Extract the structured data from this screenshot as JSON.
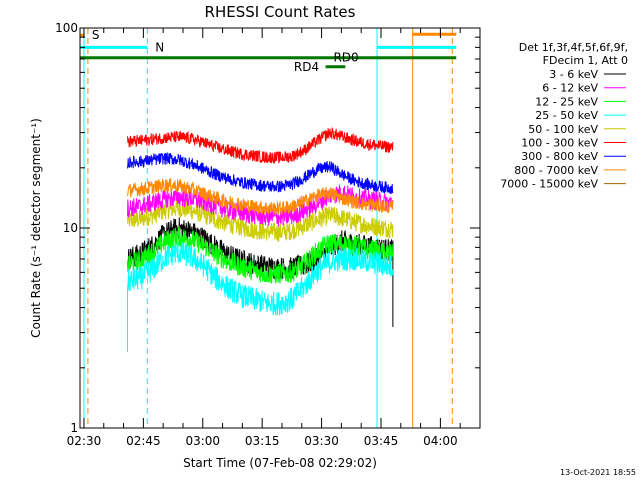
{
  "chart_data": {
    "type": "line",
    "title": "RHESSI Count Rates",
    "xlabel": "Start Time (07-Feb-08 02:29:02)",
    "ylabel": "Count Rate (s⁻¹ detector segment⁻¹)",
    "x_unit": "minutes",
    "xlim": [
      "02:29",
      "04:10"
    ],
    "ylim": [
      1,
      100
    ],
    "yscale": "log",
    "x_ticks": [
      "02:30",
      "02:45",
      "03:00",
      "03:15",
      "03:30",
      "03:45",
      "04:00"
    ],
    "y_ticks": [
      "1",
      "10",
      "100"
    ],
    "grid": false,
    "legend_position": "right",
    "legend_header": [
      "Det 1f,3f,4f,5f,6f,9f,",
      "FDecim 1, Att 0"
    ],
    "timestamp": "13-Oct-2021 18:55",
    "series": [
      {
        "name": "3 - 6 keV",
        "color": "#000000",
        "values": [
          7.0,
          7.4,
          8.2,
          9.4,
          10.0,
          9.6,
          8.9,
          8.0,
          7.3,
          6.9,
          6.6,
          6.4,
          6.3,
          6.3,
          6.5,
          7.0,
          7.9,
          8.6,
          8.3,
          8.1,
          7.9,
          7.7
        ]
      },
      {
        "name": "6 - 12 keV",
        "color": "#ff00ff",
        "values": [
          12.6,
          12.8,
          13.4,
          14.0,
          14.3,
          14.1,
          13.5,
          12.9,
          12.3,
          11.9,
          11.6,
          11.4,
          11.3,
          11.5,
          12.2,
          13.2,
          14.6,
          15.0,
          14.3,
          13.9,
          13.6,
          13.3
        ]
      },
      {
        "name": "12 - 25 keV",
        "color": "#00ff00",
        "values": [
          6.6,
          6.9,
          7.6,
          8.6,
          9.1,
          8.8,
          8.2,
          7.4,
          6.8,
          6.4,
          6.1,
          5.9,
          5.9,
          6.0,
          6.6,
          7.6,
          8.4,
          8.3,
          8.1,
          7.8,
          7.6,
          7.4
        ]
      },
      {
        "name": "25 - 50 keV",
        "color": "#00ffff",
        "values": [
          5.4,
          5.6,
          6.2,
          7.2,
          7.6,
          7.2,
          6.5,
          5.6,
          5.0,
          4.6,
          4.4,
          4.2,
          4.2,
          4.4,
          5.1,
          6.1,
          6.8,
          7.0,
          7.0,
          6.8,
          6.6,
          6.4
        ]
      },
      {
        "name": "50 - 100 keV",
        "color": "#cccc00",
        "values": [
          10.9,
          11.1,
          11.6,
          12.3,
          12.6,
          12.3,
          11.7,
          11.0,
          10.5,
          10.1,
          9.8,
          9.6,
          9.5,
          9.7,
          10.3,
          11.0,
          11.6,
          11.2,
          10.7,
          10.3,
          10.1,
          9.9
        ]
      },
      {
        "name": "100 - 300 keV",
        "color": "#ff0000",
        "values": [
          27.0,
          27.3,
          27.8,
          28.3,
          28.5,
          28.0,
          26.8,
          25.4,
          24.3,
          23.5,
          23.0,
          22.6,
          22.5,
          22.8,
          24.5,
          27.2,
          30.0,
          28.6,
          27.3,
          26.3,
          25.7,
          25.3
        ]
      },
      {
        "name": "300 - 800 keV",
        "color": "#0000ff",
        "values": [
          21.2,
          21.5,
          21.9,
          22.3,
          22.0,
          21.0,
          19.8,
          18.5,
          17.6,
          16.9,
          16.5,
          16.2,
          16.1,
          16.5,
          17.8,
          19.6,
          20.3,
          18.5,
          17.2,
          16.5,
          16.1,
          15.8
        ]
      },
      {
        "name": "800 - 7000 keV",
        "color": "#ff8800",
        "values": [
          15.4,
          15.6,
          16.0,
          16.4,
          16.3,
          15.7,
          14.9,
          14.1,
          13.5,
          13.1,
          12.8,
          12.6,
          12.5,
          12.8,
          13.6,
          14.5,
          14.9,
          14.1,
          13.5,
          13.1,
          12.9,
          12.7
        ]
      },
      {
        "name": "7000 - 15000 keV",
        "color": "#aa6600",
        "values": []
      }
    ],
    "vertical_markers": [
      {
        "time": "02:30",
        "color": "#00ffff",
        "style": "solid"
      },
      {
        "time": "02:31",
        "color": "#ff8800",
        "style": "dashed"
      },
      {
        "time": "02:46",
        "color": "#00ffff",
        "style": "dashed"
      },
      {
        "time": "03:44",
        "color": "#00ffff",
        "style": "solid"
      },
      {
        "time": "03:53",
        "color": "#ff8800",
        "style": "solid"
      },
      {
        "time": "04:03",
        "color": "#ff8800",
        "style": "dashed"
      }
    ],
    "flag_bars": [
      {
        "label": "S",
        "color": "#ff8800",
        "y": 92,
        "start": "02:29",
        "end": "02:30",
        "label_time": "02:32"
      },
      {
        "label": "N",
        "color": "#00ffff",
        "y": 80,
        "start": "02:29",
        "end": "02:46",
        "label_time": "02:48"
      },
      {
        "label": "",
        "color": "#00ffff",
        "y": 80,
        "start": "03:44",
        "end": "04:04"
      },
      {
        "label": "",
        "color": "#ff8800",
        "y": 93,
        "start": "03:53",
        "end": "04:04"
      },
      {
        "label": "RD0",
        "color": "#007700",
        "y": 71,
        "start": "02:29",
        "end": "04:04",
        "label_time": "03:33"
      },
      {
        "label": "RD4",
        "color": "#007700",
        "y": 64,
        "start": "03:31",
        "end": "03:36",
        "label_time": "03:23"
      }
    ],
    "data_start": "02:41",
    "data_end": "03:48",
    "spikes": [
      {
        "time": "02:41",
        "low": 2.4,
        "series": "25 - 50 keV"
      },
      {
        "time": "03:48",
        "low": 3.2,
        "series": "3 - 6 keV"
      }
    ]
  }
}
